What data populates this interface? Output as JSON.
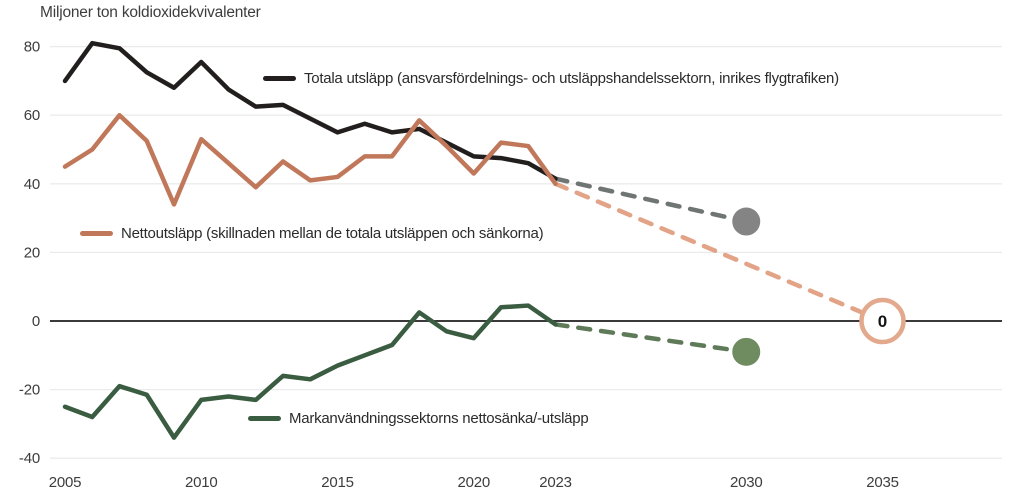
{
  "chart_data": {
    "type": "line",
    "title": "Miljoner ton koldioxidekvivalenter",
    "xlabel": "",
    "ylabel": "Miljoner ton koldioxidekvivalenter",
    "x_ticks": [
      2005,
      2010,
      2015,
      2020,
      2023,
      2030,
      2035
    ],
    "y_ticks": [
      80,
      60,
      40,
      20,
      0,
      -20,
      -40
    ],
    "xlim": [
      2004.4,
      2039.4
    ],
    "ylim": [
      -45,
      85
    ],
    "grid": "horizontal",
    "legend_position": "inside-plot",
    "colors": {
      "grid": "#ebebeb",
      "zero_axis": "#3a3a3a",
      "tick_text": "#3d3d3d"
    },
    "series": [
      {
        "id": "totala-utslapp",
        "name": "Totala utsläpp (ansvarsfördelnings- och utsläppshandelssektorn, inrikes flygtrafiken)",
        "color": "#221e1e",
        "style": "solid",
        "x": [
          2005,
          2006,
          2007,
          2008,
          2009,
          2010,
          2011,
          2012,
          2013,
          2014,
          2015,
          2016,
          2017,
          2018,
          2019,
          2020,
          2021,
          2022,
          2023
        ],
        "values": [
          70,
          81,
          79.5,
          72.5,
          68,
          75.5,
          67.5,
          62.5,
          63,
          59,
          55,
          57.5,
          55,
          56,
          52,
          48,
          47.5,
          46,
          41.5
        ]
      },
      {
        "id": "nettoutslapp",
        "name": "Nettoutsläpp (skillnaden mellan de totala utsläppen och sänkorna)",
        "color": "#c1785a",
        "style": "solid",
        "x": [
          2005,
          2006,
          2007,
          2008,
          2009,
          2010,
          2011,
          2012,
          2013,
          2014,
          2015,
          2016,
          2017,
          2018,
          2019,
          2020,
          2021,
          2022,
          2023
        ],
        "values": [
          45,
          50,
          60,
          52.5,
          34,
          53,
          46,
          39,
          46.5,
          41,
          42,
          48,
          48,
          58.5,
          51,
          43,
          52,
          51,
          40
        ]
      },
      {
        "id": "markanvandning",
        "name": "Markanvändningssektorns nettosänka/-utsläpp",
        "color": "#3a5c41",
        "style": "solid",
        "x": [
          2005,
          2006,
          2007,
          2008,
          2009,
          2010,
          2011,
          2012,
          2013,
          2014,
          2015,
          2016,
          2017,
          2018,
          2019,
          2020,
          2021,
          2022,
          2023
        ],
        "values": [
          -25,
          -28,
          -19,
          -21.5,
          -34,
          -23,
          -22,
          -23,
          -16,
          -17,
          -13,
          -10,
          -7,
          2.5,
          -3,
          -5,
          4,
          4.5,
          -1
        ]
      },
      {
        "id": "totala-utslapp-prognos",
        "name": "Totala utsläpp prognos",
        "color": "#6f7572",
        "style": "dashed",
        "x": [
          2023,
          2030
        ],
        "values": [
          41.5,
          29
        ]
      },
      {
        "id": "nettoutslapp-prognos",
        "name": "Nettoutsläpp prognos",
        "color": "#e2a387",
        "style": "dashed",
        "x": [
          2023,
          2035
        ],
        "values": [
          40,
          0
        ]
      },
      {
        "id": "markanvandning-prognos",
        "name": "Markanvändningssektorns prognos",
        "color": "#5f7a58",
        "style": "dashed",
        "x": [
          2023,
          2030
        ],
        "values": [
          -1,
          -9
        ]
      }
    ],
    "endpoints": [
      {
        "id": "totala-2030-dot",
        "x": 2030,
        "value": 29,
        "color": "#848484"
      },
      {
        "id": "markanvandning-2030-dot",
        "x": 2030,
        "value": -9,
        "color": "#6e8c60"
      }
    ],
    "annotations": [
      {
        "id": "netto-noll-2035",
        "x": 2035,
        "value": 0,
        "label": "0",
        "color": "#e3a98d"
      }
    ]
  }
}
